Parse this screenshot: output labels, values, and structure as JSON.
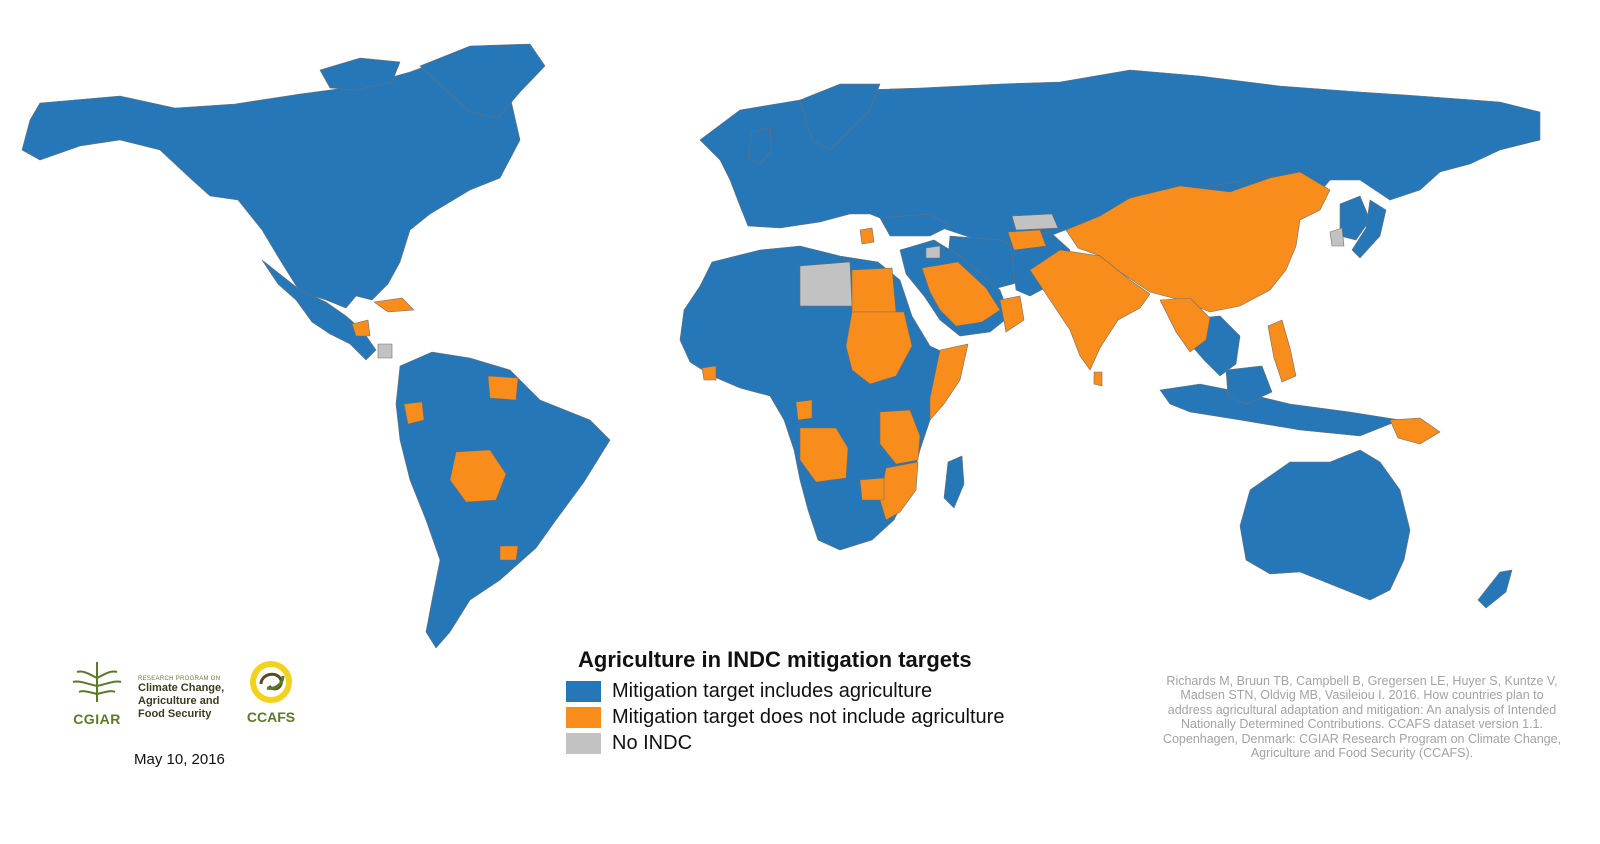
{
  "legend": {
    "title": "Agriculture in INDC mitigation targets",
    "items": [
      {
        "label": "Mitigation target includes agriculture",
        "color": "#2677b8"
      },
      {
        "label": "Mitigation target does not include agriculture",
        "color": "#f98d1c"
      },
      {
        "label": "No INDC",
        "color": "#c2c2c2"
      }
    ]
  },
  "citation": "Richards M, Bruun TB, Campbell B, Gregersen LE, Huyer S, Kuntze V, Madsen STN, Oldvig MB, Vasileiou I. 2016. How countries plan to address agricultural adaptation and mitigation: An analysis of Intended Nationally Determined Contributions. CCAFS dataset version 1.1. Copenhagen, Denmark: CGIAR Research Program on Climate Change, Agriculture and Food Security (CCAFS).",
  "date": "May 10, 2016",
  "logos": {
    "cgiar": "CGIAR",
    "program_small": "RESEARCH PROGRAM ON",
    "program_line1": "Climate Change,",
    "program_line2": "Agriculture and",
    "program_line3": "Food Security",
    "ccafs": "CCAFS"
  },
  "colors": {
    "includes": "#2677b8",
    "excludes": "#f98d1c",
    "no_indc": "#c2c2c2",
    "border": "#7a7a7a"
  }
}
